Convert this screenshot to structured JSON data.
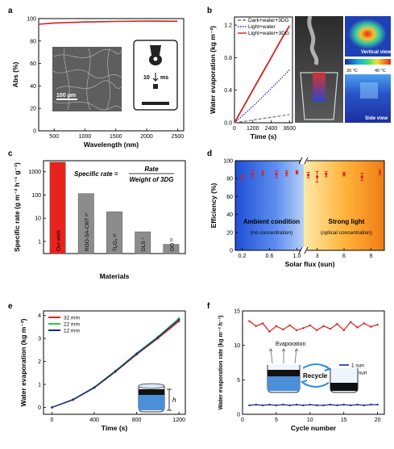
{
  "chart_data": [
    {
      "panel": "a",
      "type": "line",
      "xlabel": "Wavelength (nm)",
      "ylabel": "Abs (%)",
      "xlim": [
        250,
        2600
      ],
      "ylim": [
        0,
        100
      ],
      "xticks": [
        500,
        1000,
        1500,
        2000,
        2500
      ],
      "yticks": [
        0,
        20,
        40,
        60,
        80,
        100
      ],
      "series": [
        {
          "color": "#d62020",
          "x": [
            250,
            500,
            1000,
            1500,
            2000,
            2500
          ],
          "y": [
            95,
            96,
            97,
            97.5,
            97.8,
            97.6
          ]
        }
      ],
      "annotations": {
        "scale_bar": "100 μm",
        "droplet_time": "10",
        "droplet_unit": "ms"
      }
    },
    {
      "panel": "b",
      "type": "line",
      "xlabel": "Time (s)",
      "ylabel": "Water evaporation (kg m⁻²)",
      "xlim": [
        0,
        3800
      ],
      "ylim": [
        0,
        1.3
      ],
      "xticks": [
        0,
        1200,
        2400,
        3600
      ],
      "yticks": [
        0.0,
        0.4,
        0.8,
        1.2
      ],
      "legend_position": "top-left",
      "series": [
        {
          "name": "Dark+water+3DG",
          "color": "#777777",
          "style": "dash",
          "x": [
            0,
            3600
          ],
          "y": [
            0,
            0.1
          ]
        },
        {
          "name": "Light+water",
          "color": "#2222cc",
          "style": "dot",
          "x": [
            0,
            1200,
            2400,
            3600
          ],
          "y": [
            0,
            0.2,
            0.42,
            0.65
          ]
        },
        {
          "name": "Light+water+3DG",
          "color": "#d62020",
          "style": "solid",
          "x": [
            0,
            600,
            1200,
            1800,
            2400,
            3000,
            3600
          ],
          "y": [
            0,
            0.2,
            0.4,
            0.6,
            0.8,
            1.0,
            1.19
          ]
        }
      ],
      "annotations": {
        "top_view": "Vertical view",
        "side_view": "Side view",
        "scale_min": "30 °C",
        "scale_max": "40 °C"
      }
    },
    {
      "panel": "c",
      "type": "bar",
      "log_scale": true,
      "xlabel": "Materials",
      "ylabel": "Specific rate (g m⁻² h⁻¹ g⁻¹)",
      "ylim": [
        0.3,
        3000
      ],
      "yticks": [
        1,
        10,
        100,
        1000
      ],
      "ytick_labels": [
        "1",
        "10",
        "100",
        "1000"
      ],
      "categories": [
        "Our work",
        "RGO-SA-CNT ¹⁰",
        "Ti₂O₃ ²²",
        "DLS ⁷",
        "GO ¹²"
      ],
      "values": [
        2600,
        115,
        19,
        2.6,
        0.75
      ],
      "colors": [
        "#e8231e",
        "#8c8c8c",
        "#8c8c8c",
        "#8c8c8c",
        "#8c8c8c"
      ],
      "formula": {
        "lhs": "Specific rate =",
        "numerator": "Rate",
        "denominator": "Weight of 3DG"
      }
    },
    {
      "panel": "d",
      "type": "scatter",
      "xlabel": "Solar flux (sun)",
      "ylabel": "Efficiency (%)",
      "ylim": [
        0,
        100
      ],
      "yticks": [
        0,
        20,
        40,
        60,
        80,
        100
      ],
      "xticks_left": [
        0.2,
        0.6,
        1.0
      ],
      "xticks_left_labels": [
        "0.2",
        "0.6",
        "1.0"
      ],
      "xticks_right": [
        3,
        6,
        9
      ],
      "x": [
        0.2,
        0.35,
        0.5,
        0.7,
        0.85,
        1,
        2,
        3,
        4,
        6,
        8,
        10
      ],
      "y": [
        81,
        85,
        86,
        85,
        86,
        87,
        84,
        82,
        85,
        85,
        82,
        87
      ],
      "err": [
        3,
        4,
        3,
        4,
        3,
        2,
        3,
        6,
        3,
        2,
        4,
        3
      ],
      "annotations": {
        "left_title": "Ambient condition",
        "left_sub": "(no concentration)",
        "right_title": "Strong light",
        "right_sub": "(optical concentration)"
      }
    },
    {
      "panel": "e",
      "type": "line",
      "xlabel": "Time (s)",
      "ylabel": "Water evaporation (kg m⁻²)",
      "xlim": [
        -80,
        1260
      ],
      "ylim": [
        -0.3,
        4.2
      ],
      "xticks": [
        0,
        400,
        800,
        1200
      ],
      "yticks": [
        0,
        1,
        2,
        3,
        4
      ],
      "legend_position": "top-left",
      "series": [
        {
          "name": "32 mm",
          "color": "#e8231e",
          "x": [
            0,
            200,
            400,
            600,
            800,
            1000,
            1200
          ],
          "y": [
            0,
            0.33,
            0.85,
            1.55,
            2.3,
            3.0,
            3.75
          ]
        },
        {
          "name": "22 mm",
          "color": "#22cc44",
          "x": [
            0,
            200,
            400,
            600,
            800,
            1000,
            1200
          ],
          "y": [
            0,
            0.35,
            0.88,
            1.6,
            2.36,
            3.08,
            3.88
          ]
        },
        {
          "name": "12 mm",
          "color": "#1a2a8a",
          "x": [
            0,
            200,
            400,
            600,
            800,
            1000,
            1200
          ],
          "y": [
            0,
            0.34,
            0.86,
            1.57,
            2.33,
            3.04,
            3.82
          ]
        }
      ],
      "annotations": {
        "height_symbol": "h"
      }
    },
    {
      "panel": "f",
      "type": "line",
      "xlabel": "Cycle number",
      "ylabel": "Water evaporation rate (kg m⁻² h⁻¹)",
      "xlim": [
        0,
        21
      ],
      "ylim": [
        0,
        15
      ],
      "xticks": [
        0,
        5,
        10,
        15,
        20
      ],
      "yticks": [
        0,
        5,
        10,
        15
      ],
      "legend_position": "middle-right",
      "series": [
        {
          "name": "1 sun",
          "color": "#1a2a8a",
          "x": [
            1,
            2,
            3,
            4,
            5,
            6,
            7,
            8,
            9,
            10,
            11,
            12,
            13,
            14,
            15,
            16,
            17,
            18,
            19,
            20
          ],
          "y": [
            1.3,
            1.4,
            1.3,
            1.4,
            1.3,
            1.4,
            1.3,
            1.4,
            1.3,
            1.4,
            1.3,
            1.3,
            1.4,
            1.3,
            1.4,
            1.3,
            1.4,
            1.3,
            1.4,
            1.4
          ]
        },
        {
          "name": "10 sun",
          "color": "#d62020",
          "x": [
            1,
            2,
            3,
            4,
            5,
            6,
            7,
            8,
            9,
            10,
            11,
            12,
            13,
            14,
            15,
            16,
            17,
            18,
            19,
            20
          ],
          "y": [
            13.5,
            12.8,
            13.2,
            12.0,
            12.8,
            12.3,
            12.9,
            12.2,
            12.5,
            12.9,
            12.2,
            12.8,
            12.4,
            13.1,
            12.2,
            13.4,
            12.6,
            13.2,
            12.7,
            13.0
          ]
        }
      ],
      "annotations": {
        "evaporation": "Evaporation",
        "recycle": "Recycle"
      }
    }
  ]
}
